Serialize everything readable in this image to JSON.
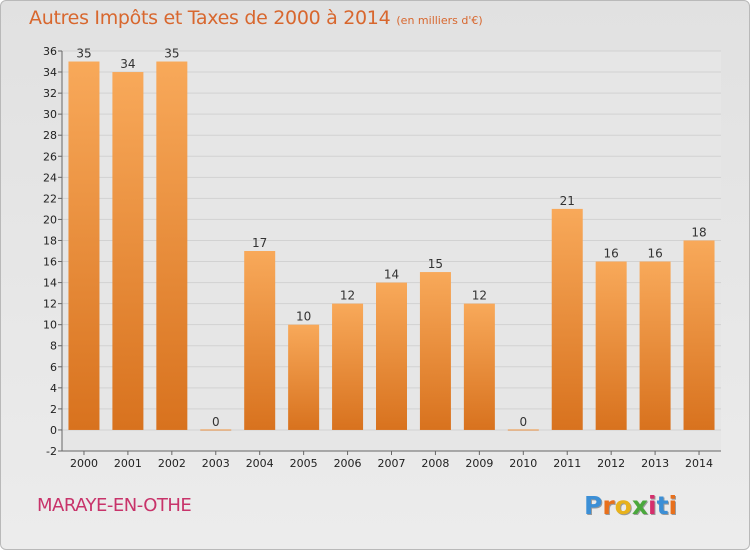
{
  "header": {
    "title": "Autres Impôts et Taxes de 2000 à 2014",
    "subtitle": "(en milliers d'€)"
  },
  "footer": {
    "commune": "MARAYE-EN-OTHE",
    "logo": {
      "letters": [
        "P",
        "r",
        "o",
        "x",
        "i",
        "t",
        "i"
      ],
      "colors": [
        "#3c8fd6",
        "#e8701c",
        "#e8b21c",
        "#4aa83c",
        "#d62f6c",
        "#3c8fd6",
        "#e8701c"
      ]
    }
  },
  "colors": {
    "bar_light": "#f8a95a",
    "bar_dark": "#d8721e",
    "title": "#d8672e",
    "commune": "#c8336a"
  },
  "chart_data": {
    "type": "bar",
    "categories": [
      "2000",
      "2001",
      "2002",
      "2003",
      "2004",
      "2005",
      "2006",
      "2007",
      "2008",
      "2009",
      "2010",
      "2011",
      "2012",
      "2013",
      "2014"
    ],
    "values": [
      35,
      34,
      35,
      0,
      17,
      10,
      12,
      14,
      15,
      12,
      0,
      21,
      16,
      16,
      18
    ],
    "title": "Autres Impôts et Taxes de 2000 à 2014",
    "xlabel": "",
    "ylabel": "",
    "ylim": [
      -2,
      36
    ],
    "yticks": [
      -2,
      0,
      2,
      4,
      6,
      8,
      10,
      12,
      14,
      16,
      18,
      20,
      22,
      24,
      26,
      28,
      30,
      32,
      34,
      36
    ],
    "grid": true,
    "legend": "none"
  }
}
